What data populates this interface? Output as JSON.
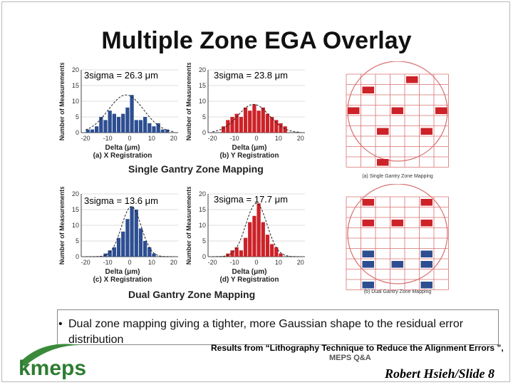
{
  "title": "Multiple Zone EGA Overlay",
  "colors": {
    "blue": "#2d4e91",
    "red": "#cc2228",
    "logo_green": "#3b8a3b",
    "grid_red": "#d87070",
    "grid_blue": "#6f86c8"
  },
  "axis": {
    "ylabel": "Number of Measurements",
    "xlabel": "Delta (μm)",
    "yticks": [
      "0",
      "5",
      "10",
      "15",
      "20"
    ],
    "xticks": [
      "-20",
      "-10",
      "0",
      "10",
      "20"
    ]
  },
  "sections": {
    "single": "Single Gantry Zone Mapping",
    "dual": "Dual Gantry Zone Mapping"
  },
  "chart_data": [
    {
      "type": "bar",
      "caption": "(a) X Registration",
      "sigma_label": "3sigma = 26.3 μm",
      "color": "blue",
      "x": [
        -19,
        -17,
        -15,
        -13,
        -11,
        -9,
        -7,
        -5,
        -3,
        -1,
        1,
        3,
        5,
        7,
        9,
        11,
        13,
        15,
        17
      ],
      "values": [
        1,
        1,
        2,
        5,
        4,
        7,
        6,
        5,
        6,
        8,
        12,
        4,
        4,
        5,
        3,
        2,
        3,
        1,
        1
      ],
      "ylim": [
        0,
        20
      ],
      "xlim": [
        -22,
        22
      ]
    },
    {
      "type": "bar",
      "caption": "(b) Y Registration",
      "sigma_label": "3sigma = 23.8 μm",
      "color": "red",
      "x": [
        -15,
        -13,
        -11,
        -9,
        -7,
        -5,
        -3,
        -1,
        1,
        3,
        5,
        7,
        9,
        11,
        13
      ],
      "values": [
        2,
        4,
        5,
        6,
        5,
        8,
        7,
        9,
        7,
        8,
        6,
        5,
        4,
        3,
        2
      ],
      "ylim": [
        0,
        20
      ],
      "xlim": [
        -22,
        22
      ]
    },
    {
      "type": "bar",
      "caption": "(c) X Registration",
      "sigma_label": "3sigma = 13.6 μm",
      "color": "blue",
      "x": [
        -11,
        -9,
        -7,
        -5,
        -3,
        -1,
        1,
        3,
        5,
        7,
        9,
        11
      ],
      "values": [
        1,
        2,
        3,
        6,
        8,
        12,
        16,
        15,
        9,
        5,
        3,
        1
      ],
      "ylim": [
        0,
        20
      ],
      "xlim": [
        -22,
        22
      ]
    },
    {
      "type": "bar",
      "caption": "(d) Y Registration",
      "sigma_label": "3sigma = 17.7 μm",
      "color": "red",
      "x": [
        -13,
        -11,
        -9,
        -7,
        -5,
        -3,
        -1,
        1,
        3,
        5,
        7,
        9,
        11
      ],
      "values": [
        1,
        2,
        3,
        2,
        6,
        11,
        13,
        17,
        11,
        7,
        4,
        3,
        1
      ],
      "ylim": [
        0,
        20
      ],
      "xlim": [
        -22,
        22
      ]
    }
  ],
  "wafers": [
    {
      "caption": "(a) Single Gantry Zone Mapping"
    },
    {
      "caption": "(b) Dual Gantry Zone Mapping"
    }
  ],
  "bullet": {
    "symbol": "•",
    "text": "Dual zone mapping giving a tighter, more Gaussian shape to the residual error distribution"
  },
  "citation": "Results from “Lithography Technique to Reduce the Alignment Errors ”,",
  "citation_tail": "MEPS Q&A",
  "footer": "Robert Hsieh/Slide 8",
  "logo": "kmeps"
}
